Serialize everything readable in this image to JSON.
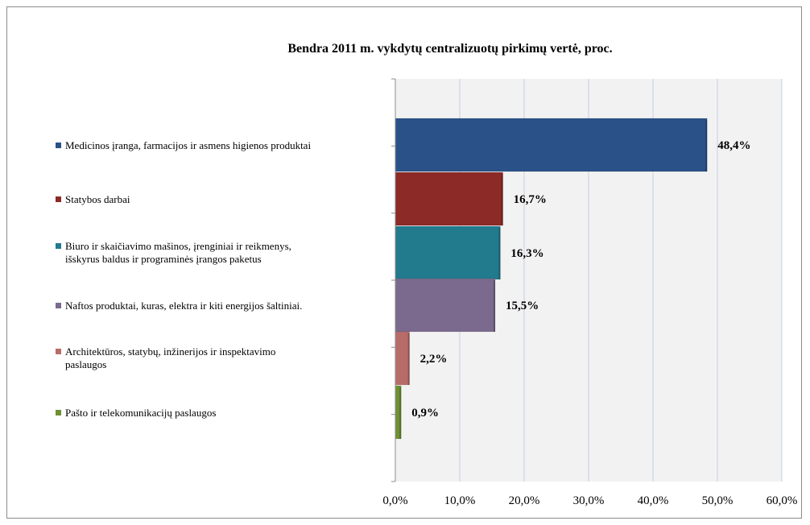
{
  "chart_data": {
    "type": "bar",
    "orientation": "horizontal",
    "title": "Bendra 2011 m. vykdytų centralizuotų pirkimų vertė, proc.",
    "xlim": [
      0,
      60
    ],
    "x_ticks": [
      0,
      10,
      20,
      30,
      40,
      50,
      60
    ],
    "x_tick_labels": [
      "0,0%",
      "10,0%",
      "20,0%",
      "30,0%",
      "40,0%",
      "50,0%",
      "60,0%"
    ],
    "grid": "vertical",
    "legend_position": "left",
    "series": [
      {
        "name": "Medicinos įranga, farmacijos ir asmens higienos produktai",
        "name_lines": [
          "Medicinos įranga, farmacijos ir asmens higienos produktai"
        ],
        "value": 48.4,
        "label": "48,4%",
        "color": "#2a5289"
      },
      {
        "name": "Statybos darbai",
        "name_lines": [
          "Statybos darbai"
        ],
        "value": 16.7,
        "label": "16,7%",
        "color": "#8b2a27"
      },
      {
        "name": "Biuro ir skaičiavimo mašinos, įrenginiai ir reikmenys, išskyrus baldus ir programinės įrangos paketus",
        "name_lines": [
          "Biuro ir skaičiavimo mašinos, įrenginiai ir reikmenys,",
          "išskyrus baldus ir programinės įrangos paketus"
        ],
        "value": 16.3,
        "label": "16,3%",
        "color": "#227a8d"
      },
      {
        "name": "Naftos produktai, kuras, elektra ir kiti energijos šaltiniai.",
        "name_lines": [
          "Naftos produktai, kuras, elektra ir kiti energijos šaltiniai."
        ],
        "value": 15.5,
        "label": "15,5%",
        "color": "#7b6a8e"
      },
      {
        "name": "Architektūros, statybų, inžinerijos ir inspektavimo paslaugos",
        "name_lines": [
          "Architektūros, statybų, inžinerijos ir inspektavimo",
          "paslaugos"
        ],
        "value": 2.2,
        "label": "2,2%",
        "color": "#b86c69"
      },
      {
        "name": "Pašto ir telekomunikacijų paslaugos",
        "name_lines": [
          "Pašto ir telekomunikacijų paslaugos"
        ],
        "value": 0.9,
        "label": "0,9%",
        "color": "#6f9133"
      }
    ]
  }
}
